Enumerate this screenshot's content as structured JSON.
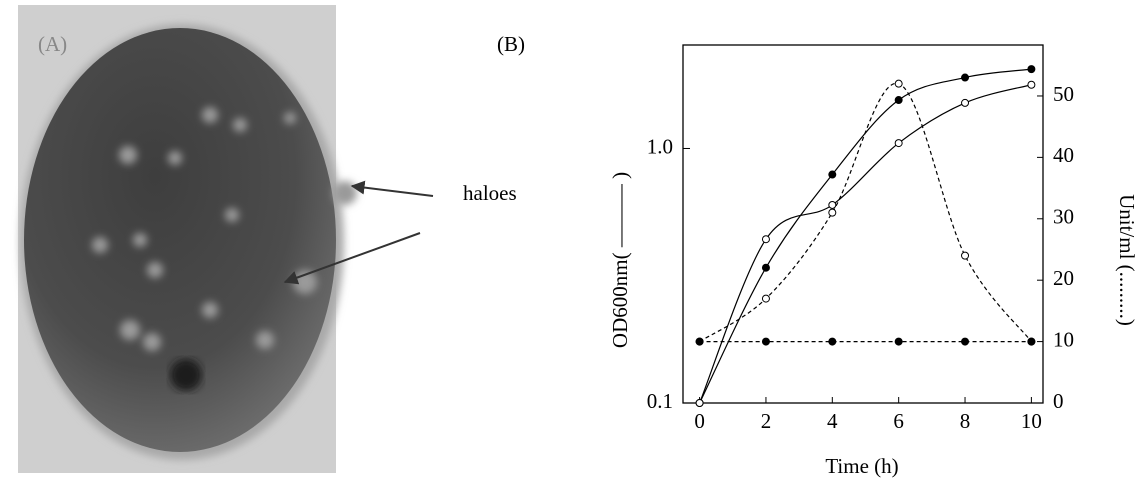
{
  "panel_a": {
    "label": "(A)",
    "annotation": "haloes"
  },
  "chart_data": {
    "type": "line",
    "title": "(B)",
    "xlabel": "Time (h)",
    "ylabel": "OD600nm( ——— )",
    "y2label": "Unit/ml (.........)",
    "x": [
      0,
      2,
      4,
      6,
      8,
      10
    ],
    "xlim": [
      -0.5,
      10.35
    ],
    "xticks": [
      0,
      2,
      4,
      6,
      8,
      10
    ],
    "ylim": [
      0.1,
      2.55
    ],
    "log_y": true,
    "yticks": [
      0.1,
      {
        "value": 1,
        "label": "1.0"
      }
    ],
    "y2lim": [
      0,
      58.3
    ],
    "y2ticks": [
      0,
      10,
      20,
      30,
      40,
      50
    ],
    "series": [
      {
        "color": "#000000",
        "line_style": "solid",
        "marker": "filled",
        "values": [
          0.1,
          0.34,
          0.79,
          1.55,
          1.9,
          2.05
        ]
      },
      {
        "color": "#000000",
        "line_style": "solid",
        "marker": "open",
        "values": [
          0.1,
          0.44,
          0.6,
          1.05,
          1.51,
          1.78
        ]
      },
      {
        "color": "#000000",
        "line_style": "dashed",
        "marker": "open",
        "axis": "y2",
        "values": [
          10,
          17,
          31,
          52,
          24,
          10
        ]
      },
      {
        "color": "#000000",
        "line_style": "dashed",
        "marker": "filled",
        "axis": "y2",
        "values": [
          10,
          10,
          10,
          10,
          10,
          10
        ]
      }
    ]
  }
}
